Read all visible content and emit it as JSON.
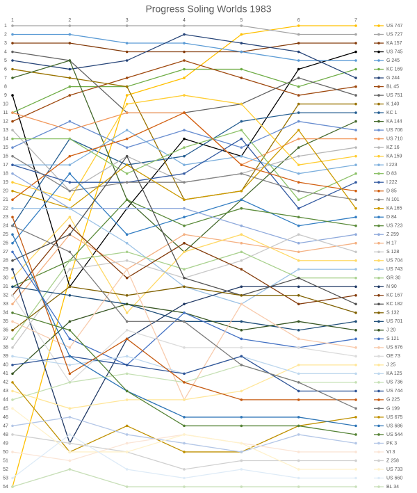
{
  "chart_data": {
    "type": "line",
    "title": "Progress Soling Worlds 1983",
    "x": [
      1,
      2,
      3,
      4,
      5,
      6,
      7
    ],
    "xlim": [
      1,
      7
    ],
    "xticks": [
      1,
      2,
      3,
      4,
      5,
      6,
      7
    ],
    "ylim": [
      54,
      1
    ],
    "yticks": [
      1,
      2,
      3,
      4,
      5,
      6,
      7,
      8,
      9,
      10,
      11,
      12,
      13,
      14,
      15,
      16,
      17,
      18,
      19,
      20,
      21,
      22,
      23,
      24,
      25,
      26,
      27,
      28,
      29,
      30,
      31,
      32,
      33,
      34,
      35,
      36,
      37,
      38,
      39,
      40,
      41,
      42,
      43,
      44,
      45,
      46,
      47,
      48,
      49,
      50,
      51,
      52,
      53,
      54
    ],
    "legend": "right",
    "markers": true,
    "series": [
      {
        "name": "US 747",
        "color": "#ffc000",
        "values": [
          54,
          30,
          9,
          7,
          2,
          1,
          1
        ]
      },
      {
        "name": "US 727",
        "color": "#a5a5a5",
        "values": [
          1,
          1,
          1,
          1,
          1,
          2,
          2
        ]
      },
      {
        "name": "KA 157",
        "color": "#843c0c",
        "values": [
          3,
          3,
          4,
          4,
          4,
          3,
          3
        ]
      },
      {
        "name": "US 745",
        "color": "#000000",
        "values": [
          9,
          31,
          22,
          14,
          16,
          6,
          4
        ]
      },
      {
        "name": "G 245",
        "color": "#5b9bd5",
        "values": [
          2,
          2,
          3,
          3,
          4,
          5,
          5
        ]
      },
      {
        "name": "KC 169",
        "color": "#70ad47",
        "values": [
          11,
          8,
          8,
          6,
          6,
          8,
          6
        ]
      },
      {
        "name": "G 244",
        "color": "#264478",
        "values": [
          5,
          6,
          5,
          2,
          3,
          4,
          7
        ]
      },
      {
        "name": "BL 45",
        "color": "#9e480e",
        "values": [
          12,
          9,
          7,
          5,
          7,
          9,
          8
        ]
      },
      {
        "name": "US 751",
        "color": "#636363",
        "values": [
          4,
          5,
          11,
          11,
          10,
          7,
          9
        ]
      },
      {
        "name": "K 140",
        "color": "#997300",
        "values": [
          6,
          7,
          8,
          21,
          20,
          10,
          10
        ]
      },
      {
        "name": "KC 1",
        "color": "#255e91",
        "values": [
          24,
          14,
          17,
          16,
          12,
          11,
          11
        ]
      },
      {
        "name": "KA 144",
        "color": "#43682b",
        "values": [
          7,
          5,
          21,
          27,
          21,
          15,
          12
        ]
      },
      {
        "name": "US 706",
        "color": "#698ed0",
        "values": [
          15,
          12,
          15,
          13,
          15,
          12,
          13
        ]
      },
      {
        "name": "US 710",
        "color": "#f1975a",
        "values": [
          11,
          13,
          11,
          11,
          17,
          14,
          14
        ]
      },
      {
        "name": "KZ 16",
        "color": "#b7b7b7",
        "values": [
          13,
          20,
          16,
          19,
          18,
          16,
          15
        ]
      },
      {
        "name": "KA 159",
        "color": "#ffcd33",
        "values": [
          19,
          21,
          10,
          9,
          10,
          17,
          16
        ]
      },
      {
        "name": "I 223",
        "color": "#7cafdd",
        "values": [
          17,
          17,
          13,
          17,
          16,
          18,
          17
        ]
      },
      {
        "name": "D 83",
        "color": "#8cc168",
        "values": [
          14,
          14,
          18,
          15,
          13,
          21,
          18
        ]
      },
      {
        "name": "I 222",
        "color": "#335aa1",
        "values": [
          17,
          19,
          19,
          18,
          14,
          22,
          19
        ]
      },
      {
        "name": "D 85",
        "color": "#d26012",
        "values": [
          21,
          16,
          14,
          11,
          17,
          19,
          20
        ]
      },
      {
        "name": "N 101",
        "color": "#848484",
        "values": [
          16,
          20,
          19,
          19,
          18,
          20,
          21
        ]
      },
      {
        "name": "KA 165",
        "color": "#cc9a00",
        "values": [
          20,
          22,
          17,
          21,
          20,
          13,
          22
        ]
      },
      {
        "name": "D 84",
        "color": "#327dc2",
        "values": [
          26,
          18,
          25,
          23,
          21,
          24,
          23
        ]
      },
      {
        "name": "US 723",
        "color": "#5a8a39",
        "values": [
          31,
          28,
          21,
          24,
          22,
          23,
          24
        ]
      },
      {
        "name": "Z 259",
        "color": "#8faadc",
        "values": [
          18,
          22,
          22,
          22,
          24,
          26,
          25
        ]
      },
      {
        "name": "H 17",
        "color": "#f4b183",
        "values": [
          33,
          25,
          29,
          25,
          26,
          27,
          26
        ]
      },
      {
        "name": "S 128",
        "color": "#c9c9c9",
        "values": [
          38,
          29,
          28,
          30,
          28,
          25,
          27
        ]
      },
      {
        "name": "US 704",
        "color": "#ffd966",
        "values": [
          30,
          23,
          34,
          27,
          25,
          28,
          28
        ]
      },
      {
        "name": "US 743",
        "color": "#9dc3e6",
        "values": [
          22,
          22,
          26,
          31,
          33,
          29,
          29
        ]
      },
      {
        "name": "GR 30",
        "color": "#a9d18e",
        "values": [
          37,
          28,
          27,
          29,
          27,
          30,
          30
        ]
      },
      {
        "name": "N 90",
        "color": "#1f3864",
        "values": [
          29,
          49,
          37,
          33,
          31,
          31,
          31
        ]
      },
      {
        "name": "KC 167",
        "color": "#843c0c",
        "values": [
          32,
          24,
          30,
          26,
          29,
          33,
          32
        ]
      },
      {
        "name": "KC 182",
        "color": "#525252",
        "values": [
          28,
          25,
          16,
          30,
          32,
          30,
          33
        ]
      },
      {
        "name": "S 132",
        "color": "#7f6000",
        "values": [
          36,
          31,
          32,
          31,
          32,
          32,
          34
        ]
      },
      {
        "name": "US 701",
        "color": "#1f4e79",
        "values": [
          31,
          32,
          33,
          35,
          35,
          36,
          35
        ]
      },
      {
        "name": "J 20",
        "color": "#375623",
        "values": [
          41,
          35,
          33,
          34,
          36,
          35,
          36
        ]
      },
      {
        "name": "S 121",
        "color": "#4472c4",
        "values": [
          27,
          37,
          40,
          34,
          37,
          38,
          37
        ]
      },
      {
        "name": "US 676",
        "color": "#f8cbad",
        "values": [
          35,
          38,
          29,
          44,
          33,
          37,
          38
        ]
      },
      {
        "name": "OE 73",
        "color": "#dbdbdb",
        "values": [
          32,
          42,
          36,
          38,
          38,
          38,
          39
        ]
      },
      {
        "name": "J 25",
        "color": "#ffe699",
        "values": [
          43,
          45,
          44,
          44,
          43,
          40,
          40
        ]
      },
      {
        "name": "KA 125",
        "color": "#bdd7ee",
        "values": [
          39,
          40,
          39,
          41,
          39,
          41,
          41
        ]
      },
      {
        "name": "US 736",
        "color": "#c5e0b4",
        "values": [
          44,
          42,
          41,
          42,
          40,
          42,
          42
        ]
      },
      {
        "name": "US 744",
        "color": "#2f5597",
        "values": [
          40,
          39,
          40,
          41,
          39,
          43,
          43
        ]
      },
      {
        "name": "G 225",
        "color": "#c55a11",
        "values": [
          23,
          41,
          37,
          42,
          44,
          44,
          44
        ]
      },
      {
        "name": "G 199",
        "color": "#7b7b7b",
        "values": [
          24,
          27,
          35,
          35,
          40,
          42,
          45
        ]
      },
      {
        "name": "US 675",
        "color": "#bf9000",
        "values": [
          42,
          50,
          47,
          50,
          50,
          47,
          46
        ]
      },
      {
        "name": "US 686",
        "color": "#2e75b6",
        "values": [
          25,
          39,
          43,
          46,
          46,
          46,
          47
        ]
      },
      {
        "name": "US 544",
        "color": "#548235",
        "values": [
          34,
          36,
          43,
          47,
          47,
          47,
          48
        ]
      },
      {
        "name": "PK 3",
        "color": "#b4c7e7",
        "values": [
          47,
          46,
          48,
          49,
          50,
          48,
          49
        ]
      },
      {
        "name": "VI 3",
        "color": "#fbe5d6",
        "values": [
          50,
          51,
          49,
          48,
          49,
          50,
          50
        ]
      },
      {
        "name": "Z 258",
        "color": "#d0d0d0",
        "values": [
          48,
          49,
          50,
          52,
          51,
          51,
          51
        ]
      },
      {
        "name": "US 733",
        "color": "#fff2cc",
        "values": [
          45,
          50,
          50,
          48,
          49,
          52,
          52
        ]
      },
      {
        "name": "US 660",
        "color": "#deebf7",
        "values": [
          53,
          48,
          52,
          53,
          52,
          53,
          53
        ]
      },
      {
        "name": "BL 34",
        "color": "#c8dfb8",
        "values": [
          54,
          52,
          54,
          54,
          54,
          54,
          54
        ]
      }
    ]
  }
}
